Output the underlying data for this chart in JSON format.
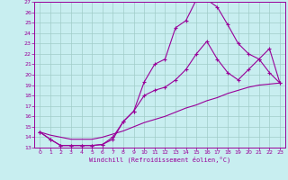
{
  "xlabel": "Windchill (Refroidissement éolien,°C)",
  "bg_color": "#c8eef0",
  "grid_color": "#a0ccc8",
  "line_color": "#990099",
  "xlim": [
    -0.5,
    23.5
  ],
  "ylim": [
    13,
    27
  ],
  "xticks": [
    0,
    1,
    2,
    3,
    4,
    5,
    6,
    7,
    8,
    9,
    10,
    11,
    12,
    13,
    14,
    15,
    16,
    17,
    18,
    19,
    20,
    21,
    22,
    23
  ],
  "yticks": [
    13,
    14,
    15,
    16,
    17,
    18,
    19,
    20,
    21,
    22,
    23,
    24,
    25,
    26,
    27
  ],
  "line1_x": [
    0,
    1,
    2,
    3,
    4,
    5,
    6,
    7,
    8,
    9,
    10,
    11,
    12,
    13,
    14,
    15,
    16,
    17,
    18,
    19,
    20,
    21,
    22,
    23
  ],
  "line1_y": [
    14.5,
    13.8,
    13.2,
    13.2,
    13.2,
    13.2,
    13.3,
    13.8,
    15.5,
    16.5,
    19.3,
    21.0,
    21.5,
    24.5,
    25.2,
    27.2,
    27.2,
    26.5,
    24.8,
    23.0,
    22.0,
    21.5,
    20.2,
    19.2
  ],
  "line2_x": [
    0,
    1,
    2,
    3,
    4,
    5,
    6,
    7,
    8,
    9,
    10,
    11,
    12,
    13,
    14,
    15,
    16,
    17,
    18,
    19,
    20,
    21,
    22,
    23
  ],
  "line2_y": [
    14.5,
    13.8,
    13.2,
    13.2,
    13.2,
    13.2,
    13.3,
    14.0,
    15.5,
    16.5,
    18.0,
    18.5,
    18.8,
    19.5,
    20.5,
    22.0,
    23.2,
    21.5,
    20.2,
    19.5,
    20.5,
    21.5,
    22.5,
    19.2
  ],
  "line3_x": [
    0,
    1,
    2,
    3,
    4,
    5,
    6,
    7,
    8,
    9,
    10,
    11,
    12,
    13,
    14,
    15,
    16,
    17,
    18,
    19,
    20,
    21,
    22,
    23
  ],
  "line3_y": [
    14.5,
    14.2,
    14.0,
    13.8,
    13.8,
    13.8,
    14.0,
    14.3,
    14.6,
    15.0,
    15.4,
    15.7,
    16.0,
    16.4,
    16.8,
    17.1,
    17.5,
    17.8,
    18.2,
    18.5,
    18.8,
    19.0,
    19.1,
    19.2
  ]
}
